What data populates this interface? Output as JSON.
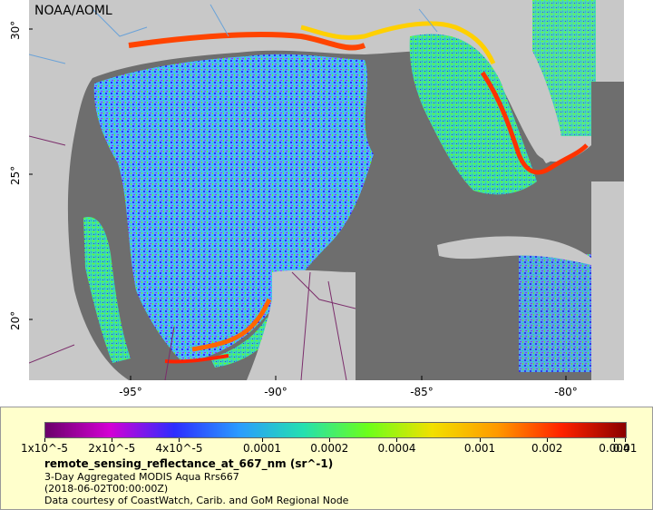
{
  "map": {
    "agency": "NOAA/AOML",
    "lat_ticks": [
      "30°",
      "25°",
      "20°"
    ],
    "lon_ticks": [
      "-95°",
      "-90°",
      "-85°",
      "-80°"
    ],
    "colors": {
      "land": "#c8c8c8",
      "nodata_ocean": "#6e6e6e",
      "border": "#7b2d6b",
      "river": "#6aa2d8"
    }
  },
  "legend": {
    "ticks": [
      "1x10^-5",
      "2x10^-5",
      "4x10^-5",
      "0.0001",
      "0.0002",
      "0.0004",
      "0.001",
      "0.002",
      "0.004",
      "0.01"
    ],
    "colormap": [
      "#6a006a",
      "#d400d4",
      "#2d2dff",
      "#2a9bff",
      "#25e0b0",
      "#6cff1a",
      "#f2e000",
      "#ff9a00",
      "#ff2200",
      "#8b0000"
    ],
    "variable": "remote_sensing_reflectance_at_667_nm (sr^-1)",
    "lines": [
      "3-Day Aggregated MODIS Aqua Rrs667",
      "(2018-06-02T00:00:00Z)",
      "Data courtesy of CoastWatch, Carib. and GoM Regional Node"
    ]
  }
}
